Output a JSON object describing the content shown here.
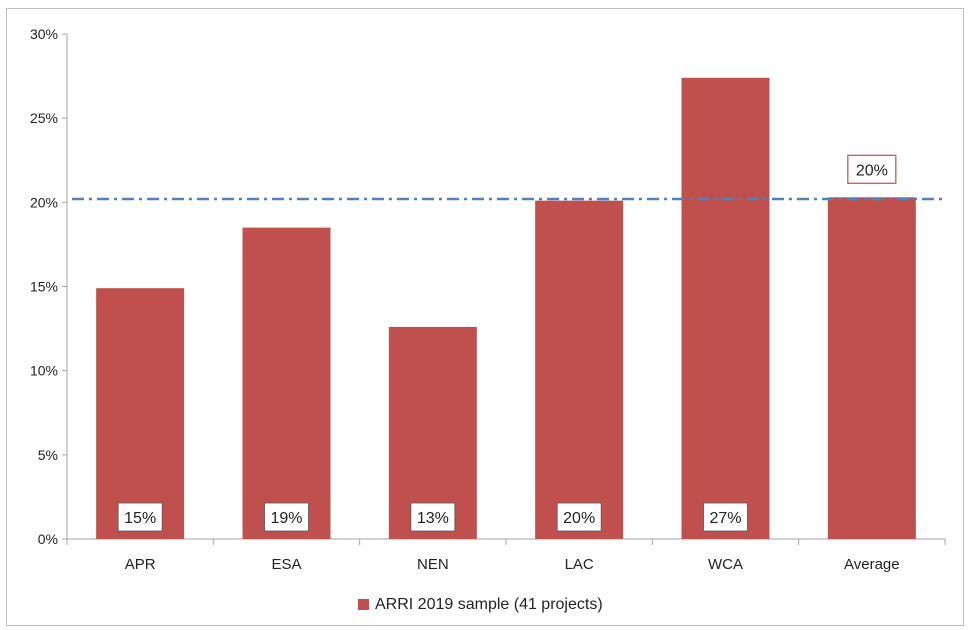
{
  "chart_data": {
    "type": "bar",
    "categories": [
      "APR",
      "ESA",
      "NEN",
      "LAC",
      "WCA",
      "Average"
    ],
    "series": [
      {
        "name": "ARRI 2019 sample (41 projects)",
        "values": [
          14.9,
          18.5,
          12.6,
          20.1,
          27.4,
          20.3
        ]
      }
    ],
    "data_labels": [
      "15%",
      "19%",
      "13%",
      "20%",
      "27%",
      "20%"
    ],
    "average_line": 20.2,
    "ylim": [
      0,
      30
    ],
    "y_ticks": [
      0,
      5,
      10,
      15,
      20,
      25,
      30
    ],
    "y_tick_labels": [
      "0%",
      "5%",
      "10%",
      "15%",
      "20%",
      "25%",
      "30%"
    ],
    "legend": {
      "position": "bottom",
      "label": "ARRI 2019 sample (41 projects)"
    },
    "title": "",
    "xlabel": "",
    "ylabel": "",
    "grid": false,
    "colors": {
      "bar": "#c0504d",
      "average_line": "#4f81bd",
      "average_label_border": "#c0504d",
      "axis": "#a6a6a6"
    }
  }
}
